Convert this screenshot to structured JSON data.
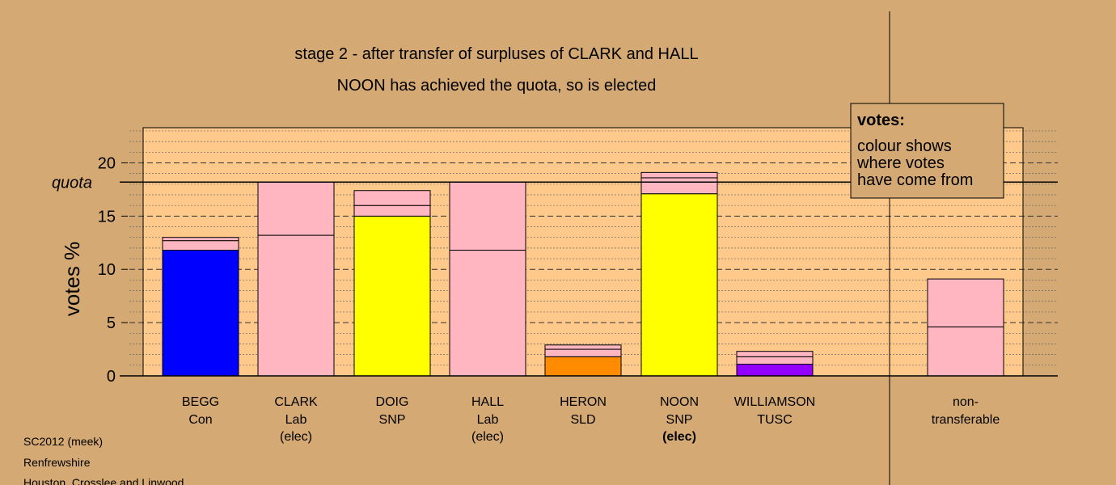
{
  "chart_data": {
    "type": "bar",
    "stacked": true,
    "title": "stage 2 - after transfer of surpluses of CLARK and HALL",
    "subtitle": "NOON has achieved the quota, so is elected",
    "ylabel": "votes %",
    "ylim": [
      0,
      23.3
    ],
    "yticks": [
      0,
      5,
      10,
      15,
      20
    ],
    "quota": 18.2,
    "quota_label": "quota",
    "grid": true,
    "legend": {
      "placement": "top-right",
      "title": "votes:",
      "lines": [
        "colour shows",
        "where votes",
        "have come from"
      ]
    },
    "candidates": [
      {
        "name": "BEGG",
        "party": "Con",
        "status": "",
        "segments": [
          {
            "value": 11.8,
            "color": "#0000ff"
          },
          {
            "value": 0.9,
            "color": "#ffb6c1"
          },
          {
            "value": 0.3,
            "color": "#ffb6c1"
          }
        ]
      },
      {
        "name": "CLARK",
        "party": "Lab",
        "status": "(elec)",
        "segments": [
          {
            "value": 13.2,
            "color": "#ffb6c1"
          },
          {
            "value": 5.0,
            "color": "#ffb6c1"
          }
        ]
      },
      {
        "name": "DOIG",
        "party": "SNP",
        "status": "",
        "segments": [
          {
            "value": 15.0,
            "color": "#ffff00"
          },
          {
            "value": 1.0,
            "color": "#ffb6c1"
          },
          {
            "value": 1.4,
            "color": "#ffb6c1"
          }
        ]
      },
      {
        "name": "HALL",
        "party": "Lab",
        "status": "(elec)",
        "segments": [
          {
            "value": 11.8,
            "color": "#ffb6c1"
          },
          {
            "value": 6.4,
            "color": "#ffb6c1"
          }
        ]
      },
      {
        "name": "HERON",
        "party": "SLD",
        "status": "",
        "segments": [
          {
            "value": 1.8,
            "color": "#ff8c00"
          },
          {
            "value": 0.7,
            "color": "#ffb6c1"
          },
          {
            "value": 0.4,
            "color": "#ffb6c1"
          }
        ]
      },
      {
        "name": "NOON",
        "party": "SNP",
        "status": "(elec)",
        "status_bold": true,
        "segments": [
          {
            "value": 17.1,
            "color": "#ffff00"
          },
          {
            "value": 1.5,
            "color": "#ffb6c1"
          },
          {
            "value": 0.5,
            "color": "#ffb6c1"
          }
        ]
      },
      {
        "name": "WILLIAMSON",
        "party": "TUSC",
        "status": "",
        "segments": [
          {
            "value": 1.1,
            "color": "#9400ff"
          },
          {
            "value": 0.7,
            "color": "#ffb6c1"
          },
          {
            "value": 0.5,
            "color": "#ffb6c1"
          }
        ]
      }
    ],
    "nontransferable": {
      "label1": "non-",
      "label2": "transferable",
      "segments": [
        {
          "value": 4.6,
          "color": "#ffb6c1"
        },
        {
          "value": 4.5,
          "color": "#ffb6c1"
        }
      ]
    }
  },
  "footer": {
    "line1": "SC2012 (meek)",
    "line2": "Renfrewshire",
    "line3": "Houston, Crosslee and Linwood"
  },
  "colors": {
    "background": "#d5a974",
    "plot_background": "#ffc98c",
    "border": "#000000"
  }
}
